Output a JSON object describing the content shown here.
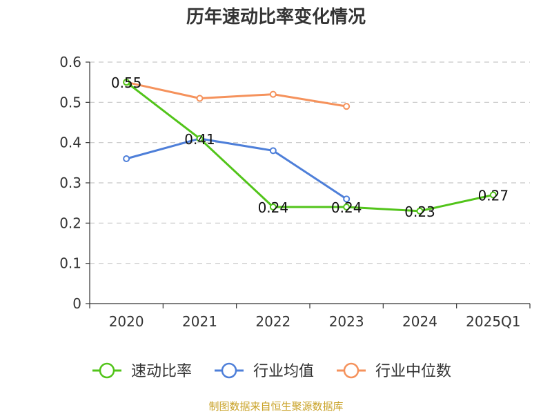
{
  "chart_data": {
    "type": "line",
    "title": "历年速动比率变化情况",
    "categories": [
      "2020",
      "2021",
      "2022",
      "2023",
      "2024",
      "2025Q1"
    ],
    "y_ticks": [
      "0",
      "0.1",
      "0.2",
      "0.3",
      "0.4",
      "0.5",
      "0.6"
    ],
    "ylim": [
      0,
      0.6
    ],
    "grid": true,
    "legend_position": "bottom",
    "series": [
      {
        "name": "速动比率",
        "color": "#52c41a",
        "values": [
          0.55,
          0.41,
          0.24,
          0.24,
          0.23,
          0.27
        ],
        "data_labels": [
          "0.55",
          "0.41",
          "0.24",
          "0.24",
          "0.23",
          "0.27"
        ]
      },
      {
        "name": "行业均值",
        "color": "#4e7fd9",
        "values": [
          0.36,
          0.41,
          0.38,
          0.26,
          null,
          null
        ]
      },
      {
        "name": "行业中位数",
        "color": "#f5925c",
        "values": [
          0.55,
          0.51,
          0.52,
          0.49,
          null,
          null
        ]
      }
    ]
  },
  "source_note": "制图数据来自恒生聚源数据库"
}
